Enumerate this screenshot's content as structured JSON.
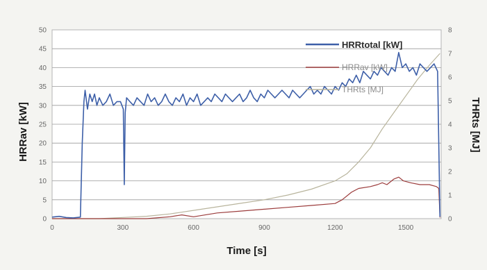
{
  "chart_data": {
    "type": "line",
    "xlabel": "Time [s]",
    "ylabel_left": "HRRav [kW]",
    "ylabel_right": "THRts [MJ]",
    "xlim": [
      0,
      1650
    ],
    "ylim_left": [
      0,
      50
    ],
    "ylim_right": [
      0,
      8
    ],
    "x_ticks": [
      0,
      300,
      600,
      900,
      1200,
      1500
    ],
    "y_left_ticks": [
      0,
      5,
      10,
      15,
      20,
      25,
      30,
      35,
      40,
      45,
      50
    ],
    "y_right_ticks": [
      0,
      1,
      2,
      3,
      4,
      5,
      6,
      7,
      8
    ],
    "grid": true,
    "legend_position": "top-right",
    "colors": {
      "hrr_total": "#3d5fa8",
      "hrr_av": "#9b3b3b",
      "thr": "#b8b49c",
      "grid": "#9a9a9a",
      "plot_bg": "#ffffff",
      "page_bg": "#f4f4f1"
    },
    "series": [
      {
        "name": "HRRtotal [kW]",
        "axis": "left",
        "x": [
          0,
          30,
          60,
          90,
          120,
          128,
          135,
          140,
          150,
          160,
          170,
          180,
          190,
          200,
          215,
          230,
          245,
          260,
          275,
          290,
          302,
          306,
          310,
          316,
          330,
          345,
          360,
          375,
          390,
          405,
          420,
          435,
          450,
          465,
          480,
          495,
          510,
          525,
          540,
          555,
          570,
          585,
          600,
          615,
          630,
          645,
          660,
          675,
          690,
          705,
          720,
          735,
          750,
          765,
          780,
          795,
          810,
          825,
          840,
          855,
          870,
          885,
          900,
          915,
          930,
          945,
          960,
          975,
          990,
          1005,
          1020,
          1035,
          1050,
          1065,
          1080,
          1095,
          1110,
          1125,
          1140,
          1155,
          1170,
          1185,
          1200,
          1215,
          1230,
          1245,
          1260,
          1275,
          1290,
          1305,
          1320,
          1335,
          1350,
          1365,
          1380,
          1395,
          1410,
          1425,
          1440,
          1455,
          1470,
          1485,
          1500,
          1515,
          1530,
          1545,
          1560,
          1575,
          1590,
          1605,
          1620,
          1635,
          1645
        ],
        "y": [
          0.4,
          0.6,
          0.3,
          0.2,
          0.4,
          20,
          31,
          34,
          29,
          33,
          31,
          33,
          30,
          32,
          30,
          31,
          33,
          30,
          31,
          31,
          29,
          9,
          28,
          32,
          31,
          30,
          32,
          31,
          30,
          33,
          31,
          32,
          30,
          31,
          33,
          31,
          30,
          32,
          31,
          33,
          30,
          32,
          31,
          33,
          30,
          31,
          32,
          31,
          33,
          32,
          31,
          33,
          32,
          31,
          32,
          33,
          31,
          32,
          34,
          32,
          31,
          33,
          32,
          34,
          33,
          32,
          33,
          34,
          33,
          32,
          34,
          33,
          32,
          33,
          34,
          35,
          33,
          34,
          33,
          35,
          34,
          33,
          35,
          34,
          36,
          35,
          37,
          36,
          38,
          36,
          39,
          38,
          37,
          39,
          38,
          40,
          39,
          38,
          40,
          39,
          44,
          40,
          41,
          39,
          40,
          38,
          41,
          40,
          39,
          40,
          41,
          39,
          0.5
        ]
      },
      {
        "name": "HRRav [kW]",
        "axis": "left",
        "x": [
          0,
          100,
          200,
          300,
          400,
          500,
          550,
          600,
          700,
          800,
          900,
          1000,
          1100,
          1200,
          1230,
          1270,
          1300,
          1350,
          1380,
          1400,
          1420,
          1450,
          1470,
          1490,
          1520,
          1560,
          1600,
          1630,
          1640,
          1645
        ],
        "y": [
          0,
          0,
          0,
          0,
          0,
          0.5,
          1.0,
          0.5,
          1.5,
          2.0,
          2.5,
          3.0,
          3.5,
          4.0,
          5.0,
          7.0,
          8.0,
          8.5,
          9.0,
          9.5,
          9.0,
          10.5,
          11.0,
          10.0,
          9.5,
          9.0,
          9.0,
          8.5,
          8.0,
          0.3
        ]
      },
      {
        "name": "THRts [MJ]",
        "axis": "right",
        "x": [
          0,
          100,
          200,
          300,
          400,
          500,
          600,
          700,
          800,
          900,
          1000,
          1100,
          1200,
          1250,
          1300,
          1350,
          1400,
          1450,
          1500,
          1550,
          1600,
          1645
        ],
        "y": [
          0,
          0,
          0,
          0.05,
          0.1,
          0.2,
          0.35,
          0.5,
          0.65,
          0.8,
          1.0,
          1.25,
          1.6,
          1.9,
          2.4,
          3.0,
          3.8,
          4.5,
          5.2,
          5.9,
          6.5,
          7.0
        ]
      }
    ]
  }
}
